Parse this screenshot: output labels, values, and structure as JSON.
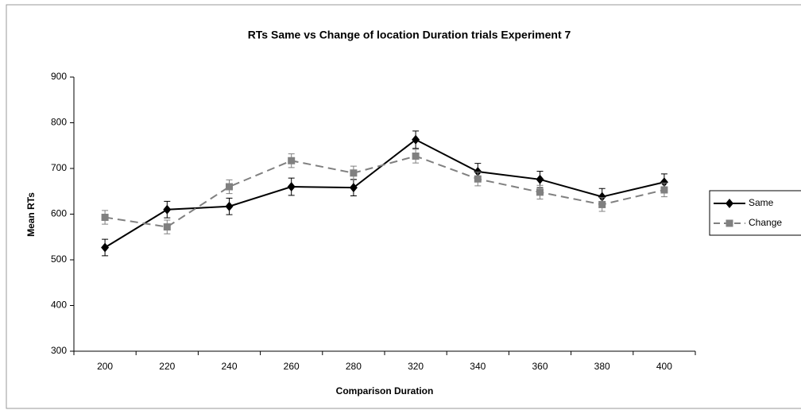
{
  "chart_data": {
    "type": "line",
    "title": "RTs Same vs Change of location Duration trials Experiment 7",
    "x_label": "Comparison Duration",
    "y_label": "Mean RTs",
    "categories": [
      "200",
      "220",
      "240",
      "260",
      "280",
      "320",
      "340",
      "360",
      "380",
      "400"
    ],
    "series": [
      {
        "name": "Same",
        "color": "#000000",
        "marker": "diamond",
        "dash": false,
        "values": [
          527,
          610,
          617,
          660,
          658,
          763,
          693,
          676,
          638,
          670
        ],
        "errors": [
          18,
          18,
          18,
          19,
          18,
          19,
          18,
          18,
          18,
          18
        ]
      },
      {
        "name": "Change",
        "color": "#808080",
        "marker": "square",
        "dash": true,
        "values": [
          593,
          572,
          660,
          717,
          690,
          727,
          677,
          648,
          621,
          653
        ],
        "errors": [
          15,
          15,
          15,
          15,
          15,
          15,
          15,
          15,
          15,
          15
        ]
      }
    ],
    "ylim": [
      300,
      900
    ],
    "yticks": [
      300,
      400,
      500,
      600,
      700,
      800,
      900
    ],
    "legend": "right"
  }
}
